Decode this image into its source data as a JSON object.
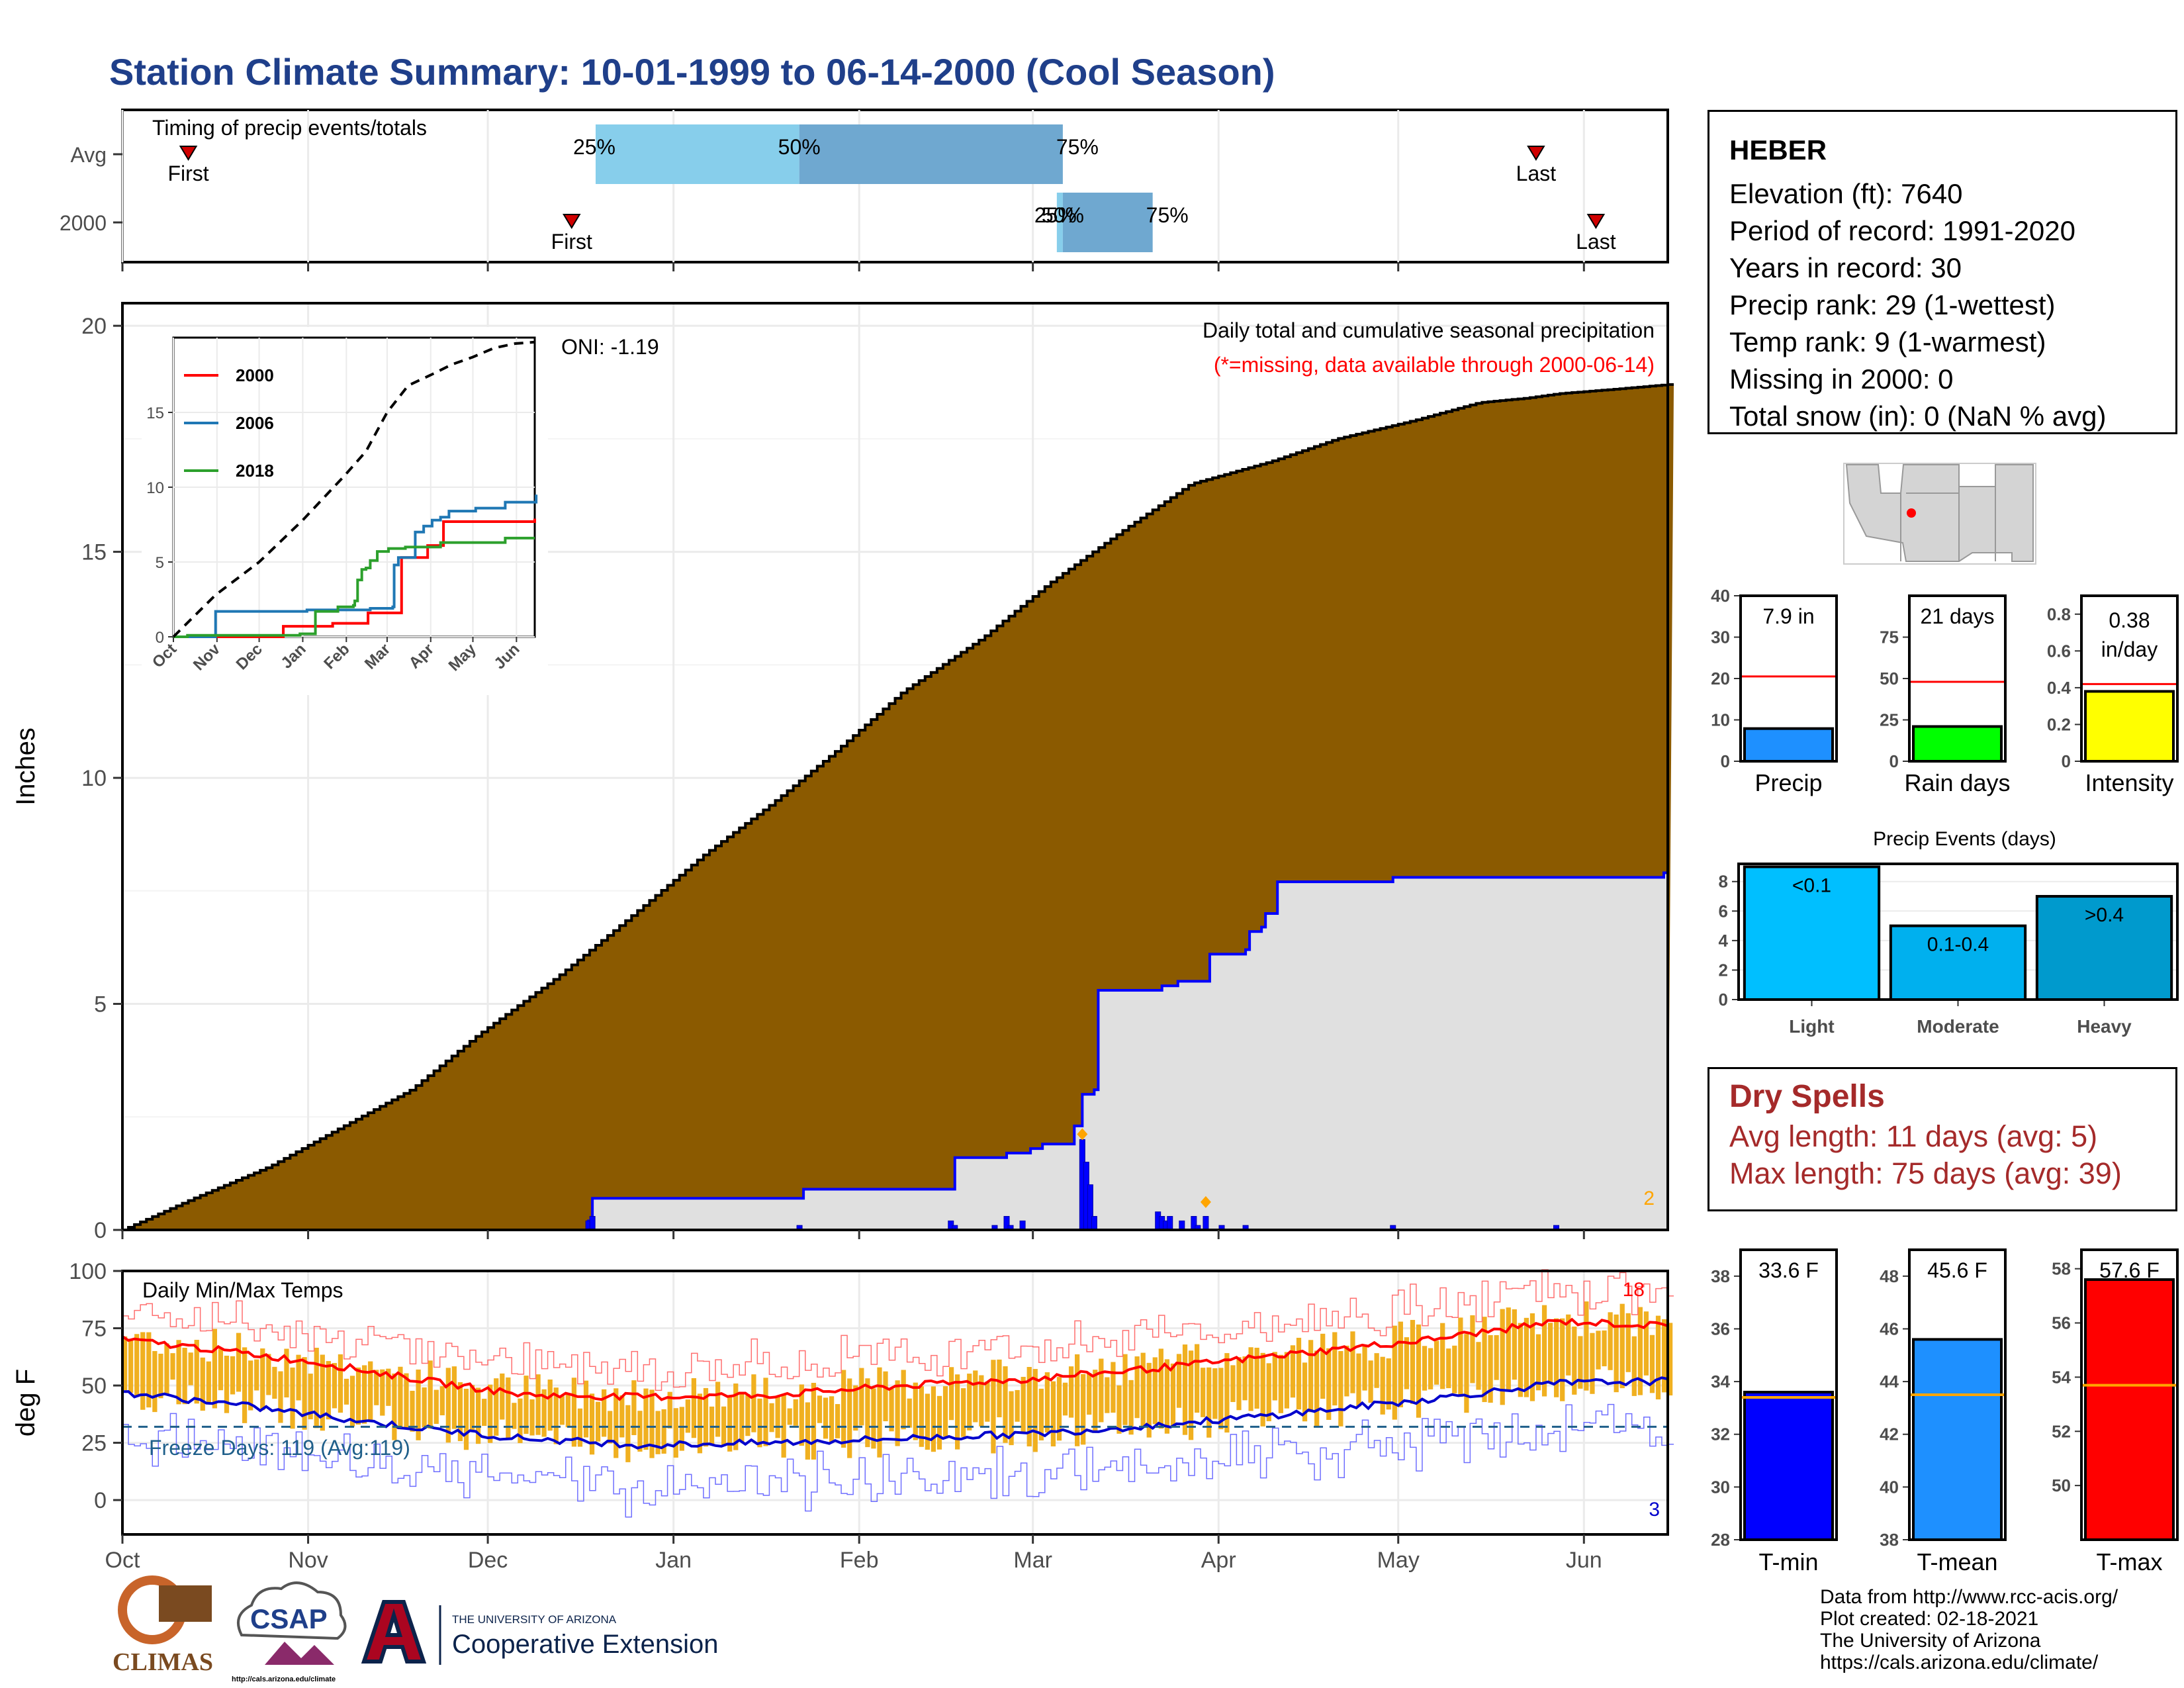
{
  "page": {
    "title": "Station Climate Summary: 10-01-1999 to 06-14-2000 (Cool Season)"
  },
  "station": {
    "name": "HEBER",
    "lines": [
      "Elevation (ft): 7640",
      "Period of record: 1991-2020",
      "Years in record: 30",
      "Precip rank: 29 (1-wettest)",
      "Temp rank: 9 (1-warmest)",
      "Missing in 2000: 0",
      "Total snow (in): 0 (NaN % avg)"
    ]
  },
  "dry_spells": {
    "title": "Dry Spells",
    "avg_length": "Avg length: 11 days (avg: 5)",
    "max_length": "Max length: 75 days (avg: 39)"
  },
  "footer": {
    "lines": [
      "Data from http://www.rcc-acis.org/",
      "Plot created: 02-18-2021",
      "The University of Arizona",
      "https://cals.arizona.edu/climate/"
    ]
  },
  "logos": {
    "climas": "CLIMAS",
    "csap": "CSAP",
    "csap_url": "http://cals.arizona.edu/climate",
    "ua_small": "THE UNIVERSITY OF ARIZONA",
    "ua_big": "Cooperative Extension"
  },
  "colors": {
    "title": "#1f3f8a",
    "cumulative_fill": "#8b5a00",
    "avg_fill": "#e0e0e0",
    "blue": "#0000ff",
    "quartile_light": "#87ceeb",
    "quartile_dark": "#6fa8d0",
    "tmax_line": "#ff0000",
    "tmin_line": "#0000cc",
    "bars": "#f0b020",
    "dry_spell": "#a52a2a"
  },
  "chart_data": [
    {
      "type": "timeline",
      "title": "Timing of precip events/totals",
      "rows": [
        {
          "label": "Avg",
          "first": "Oct 12",
          "q25": "Dec 19",
          "q50": "Jan 22",
          "q75": "Mar 6",
          "last": "May 24",
          "q25_label": "25%",
          "q50_label": "50%",
          "q75_label": "75%"
        },
        {
          "label": "2000",
          "first": "Dec 15",
          "q25": "Mar 5",
          "q50": "Mar 6",
          "q75": "Mar 21",
          "last": "Jun 3",
          "q25_label": "25%",
          "q50_label": "50%",
          "q75_label": "75%"
        }
      ],
      "first_label": "First",
      "last_label": "Last"
    },
    {
      "type": "area",
      "title": "Daily total and cumulative seasonal precipitation",
      "subtitle": "(*=missing, data available through 2000-06-14)",
      "annotation": "ONI: -1.19",
      "ylabel": "Inches",
      "ylim": [
        0,
        20.5
      ],
      "yticks": [
        0,
        5,
        10,
        15,
        20
      ],
      "xticks": [
        "Oct",
        "Nov",
        "Dec",
        "Jan",
        "Feb",
        "Mar",
        "Apr",
        "May",
        "Jun"
      ],
      "corner_count": "2",
      "avg_cumulative": [
        [
          0,
          0
        ],
        [
          15,
          0.7
        ],
        [
          31,
          1.4
        ],
        [
          45,
          2.2
        ],
        [
          61,
          3.1
        ],
        [
          75,
          4.3
        ],
        [
          92,
          5.6
        ],
        [
          106,
          6.8
        ],
        [
          123,
          8.3
        ],
        [
          137,
          9.4
        ],
        [
          151,
          10.6
        ],
        [
          165,
          11.9
        ],
        [
          182,
          13.1
        ],
        [
          196,
          14.3
        ],
        [
          212,
          15.5
        ],
        [
          226,
          16.5
        ],
        [
          243,
          17.0
        ],
        [
          257,
          17.5
        ],
        [
          273,
          17.9
        ],
        [
          287,
          18.3
        ],
        [
          297,
          18.4
        ],
        [
          304,
          18.5
        ],
        [
          316,
          18.6
        ],
        [
          327,
          18.7
        ]
      ],
      "season_2000": [
        [
          0,
          0
        ],
        [
          95,
          0
        ],
        [
          117,
          0.2
        ],
        [
          118,
          0.7
        ],
        [
          170,
          0.7
        ],
        [
          171,
          0.9
        ],
        [
          208,
          0.9
        ],
        [
          209,
          1.6
        ],
        [
          222,
          1.7
        ],
        [
          226,
          1.7
        ],
        [
          228,
          1.8
        ],
        [
          231,
          1.9
        ],
        [
          238,
          1.9
        ],
        [
          239,
          2.3
        ],
        [
          241,
          3.0
        ],
        [
          244,
          3.1
        ],
        [
          245,
          5.3
        ],
        [
          260,
          5.3
        ],
        [
          261,
          5.4
        ],
        [
          265,
          5.5
        ],
        [
          272,
          5.5
        ],
        [
          273,
          6.1
        ],
        [
          282,
          6.2
        ],
        [
          283,
          6.6
        ],
        [
          286,
          6.7
        ],
        [
          287,
          7.0
        ],
        [
          290,
          7.7
        ],
        [
          318,
          7.7
        ],
        [
          319,
          7.8
        ],
        [
          360,
          7.8
        ],
        [
          387,
          7.9
        ],
        [
          388,
          7.9
        ]
      ],
      "daily_bars": [
        [
          117,
          0.2
        ],
        [
          118,
          0.3
        ],
        [
          170,
          0.1
        ],
        [
          208,
          0.2
        ],
        [
          209,
          0.1
        ],
        [
          219,
          0.1
        ],
        [
          222,
          0.3
        ],
        [
          223,
          0.1
        ],
        [
          226,
          0.2
        ],
        [
          241,
          2.0
        ],
        [
          242,
          1.5
        ],
        [
          243,
          1.0
        ],
        [
          244,
          0.3
        ],
        [
          260,
          0.4
        ],
        [
          261,
          0.3
        ],
        [
          262,
          0.2
        ],
        [
          263,
          0.3
        ],
        [
          266,
          0.2
        ],
        [
          269,
          0.3
        ],
        [
          270,
          0.1
        ],
        [
          272,
          0.3
        ],
        [
          276,
          0.1
        ],
        [
          282,
          0.1
        ],
        [
          319,
          0.1
        ],
        [
          360,
          0.1
        ]
      ],
      "missing_markers": [
        [
          241,
          2.0
        ],
        [
          272,
          0.5
        ]
      ],
      "legend": [
        {
          "name": "2000",
          "color": "#ff0000"
        },
        {
          "name": "2006",
          "color": "#1f77b4"
        },
        {
          "name": "2018",
          "color": "#2ca02c"
        }
      ]
    },
    {
      "type": "line",
      "title": "inset",
      "yticks": [
        0,
        5,
        10,
        15
      ],
      "xticks": [
        "Oct",
        "Nov",
        "Dec",
        "Jan",
        "Feb",
        "Mar",
        "Apr",
        "May",
        "Jun"
      ],
      "series": [
        {
          "name": "2000",
          "color": "#ff0000",
          "points": [
            [
              0,
              0
            ],
            [
              95,
              0
            ],
            [
              118,
              0.7
            ],
            [
              171,
              0.9
            ],
            [
              209,
              1.6
            ],
            [
              245,
              5.3
            ],
            [
              273,
              6.1
            ],
            [
              290,
              7.7
            ],
            [
              388,
              7.9
            ]
          ]
        },
        {
          "name": "2006",
          "color": "#1f77b4",
          "points": [
            [
              0,
              0
            ],
            [
              30,
              1.7
            ],
            [
              95,
              1.8
            ],
            [
              140,
              1.9
            ],
            [
              156,
              2.0
            ],
            [
              157,
              4.8
            ],
            [
              160,
              5.3
            ],
            [
              165,
              5.3
            ],
            [
              172,
              7.0
            ],
            [
              178,
              7.4
            ],
            [
              184,
              7.8
            ],
            [
              190,
              8.0
            ],
            [
              196,
              8.4
            ],
            [
              215,
              8.6
            ],
            [
              236,
              9.0
            ],
            [
              257,
              9.0
            ],
            [
              258,
              9.5
            ]
          ]
        },
        {
          "name": "2018",
          "color": "#2ca02c",
          "points": [
            [
              0,
              0
            ],
            [
              10,
              0.1
            ],
            [
              60,
              0.1
            ],
            [
              90,
              0.2
            ],
            [
              101,
              1.7
            ],
            [
              116,
              1.7
            ],
            [
              117,
              2.0
            ],
            [
              125,
              2.0
            ],
            [
              128,
              2.1
            ],
            [
              129,
              2.4
            ],
            [
              131,
              3.8
            ],
            [
              134,
              4.5
            ],
            [
              137,
              4.6
            ],
            [
              140,
              5.1
            ],
            [
              145,
              5.7
            ],
            [
              150,
              5.7
            ],
            [
              153,
              5.9
            ],
            [
              165,
              6.0
            ],
            [
              180,
              6.0
            ],
            [
              190,
              6.3
            ],
            [
              220,
              6.3
            ],
            [
              236,
              6.6
            ],
            [
              257,
              6.6
            ]
          ]
        },
        {
          "name": "max",
          "color": "#000000",
          "dashed": true,
          "points": [
            [
              0,
              0
            ],
            [
              30,
              2.8
            ],
            [
              61,
              5.0
            ],
            [
              92,
              7.8
            ],
            [
              122,
              10.8
            ],
            [
              137,
              12.4
            ],
            [
              152,
              15.0
            ],
            [
              167,
              16.8
            ],
            [
              183,
              17.5
            ],
            [
              198,
              18.2
            ],
            [
              213,
              18.7
            ],
            [
              228,
              19.3
            ],
            [
              243,
              19.6
            ],
            [
              257,
              19.7
            ]
          ]
        }
      ]
    },
    {
      "type": "bar",
      "title": "Daily Min/Max Temps",
      "ylabel": "deg F",
      "ylim": [
        -15,
        100
      ],
      "yticks": [
        0,
        25,
        50,
        75,
        100
      ],
      "xticks": [
        "Oct",
        "Nov",
        "Dec",
        "Jan",
        "Feb",
        "Mar",
        "Apr",
        "May",
        "Jun"
      ],
      "freeze_days": "Freeze Days: 119 (Avg:119)",
      "freeze_line": 32,
      "record_high_count": "18",
      "record_low_count": "3",
      "avg_tmax": [
        [
          0,
          70
        ],
        [
          20,
          66
        ],
        [
          45,
          60
        ],
        [
          70,
          52
        ],
        [
          92,
          46
        ],
        [
          120,
          45
        ],
        [
          150,
          46
        ],
        [
          180,
          50
        ],
        [
          210,
          53
        ],
        [
          240,
          58
        ],
        [
          270,
          64
        ],
        [
          300,
          70
        ],
        [
          330,
          78
        ],
        [
          355,
          76
        ]
      ],
      "avg_tmin": [
        [
          0,
          47
        ],
        [
          20,
          43
        ],
        [
          45,
          37
        ],
        [
          70,
          31
        ],
        [
          92,
          27
        ],
        [
          120,
          24
        ],
        [
          150,
          25
        ],
        [
          180,
          27
        ],
        [
          210,
          29
        ],
        [
          240,
          33
        ],
        [
          270,
          38
        ],
        [
          300,
          44
        ],
        [
          330,
          51
        ],
        [
          355,
          52
        ]
      ]
    },
    {
      "type": "bar",
      "title": "Precip",
      "categories": [
        "Precip"
      ],
      "values": [
        7.9
      ],
      "avg_value": 20.5,
      "ylim": [
        0,
        40
      ],
      "yticks": [
        0,
        10,
        20,
        30,
        40
      ],
      "value_label": "7.9 in",
      "color": "#1e90ff"
    },
    {
      "type": "bar",
      "title": "Rain days",
      "categories": [
        "Rain days"
      ],
      "values": [
        21
      ],
      "avg_value": 48,
      "ylim": [
        0,
        100
      ],
      "yticks": [
        0,
        25,
        50,
        75
      ],
      "value_label": "21 days",
      "color": "#00ff00"
    },
    {
      "type": "bar",
      "title": "Intensity",
      "categories": [
        "Intensity"
      ],
      "values": [
        0.38
      ],
      "avg_value": 0.42,
      "ylim": [
        0,
        0.9
      ],
      "yticks": [
        0.0,
        0.2,
        0.4,
        0.6,
        0.8
      ],
      "value_label": "0.38",
      "value_unit": "in/day",
      "color": "#ffff00"
    },
    {
      "type": "bar",
      "title": "Precip Events (days)",
      "categories": [
        "Light",
        "Moderate",
        "Heavy"
      ],
      "bar_labels": [
        "<0.1",
        "0.1-0.4",
        ">0.4"
      ],
      "values": [
        9,
        5,
        7
      ],
      "ylim": [
        0,
        9.2
      ],
      "yticks": [
        0,
        2,
        4,
        6,
        8
      ],
      "colors": [
        "#00bfff",
        "#00b0ee",
        "#009acd"
      ]
    },
    {
      "type": "bar",
      "title": "T-min",
      "categories": [
        "T-min"
      ],
      "values": [
        33.6
      ],
      "avg_value": 33.4,
      "ylim": [
        28,
        39
      ],
      "yticks": [
        28,
        30,
        32,
        34,
        36,
        38
      ],
      "value_label": "33.6 F",
      "color": "#0000ff"
    },
    {
      "type": "bar",
      "title": "T-mean",
      "categories": [
        "T-mean"
      ],
      "values": [
        45.6
      ],
      "avg_value": 43.5,
      "ylim": [
        38,
        49
      ],
      "yticks": [
        38,
        40,
        42,
        44,
        46,
        48
      ],
      "value_label": "45.6 F",
      "color": "#1e90ff"
    },
    {
      "type": "bar",
      "title": "T-max",
      "categories": [
        "T-max"
      ],
      "values": [
        57.6
      ],
      "avg_value": 53.7,
      "ylim": [
        48,
        58.7
      ],
      "yticks": [
        50,
        52,
        54,
        56,
        58
      ],
      "value_label": "57.6 F",
      "color": "#ff0000"
    }
  ]
}
